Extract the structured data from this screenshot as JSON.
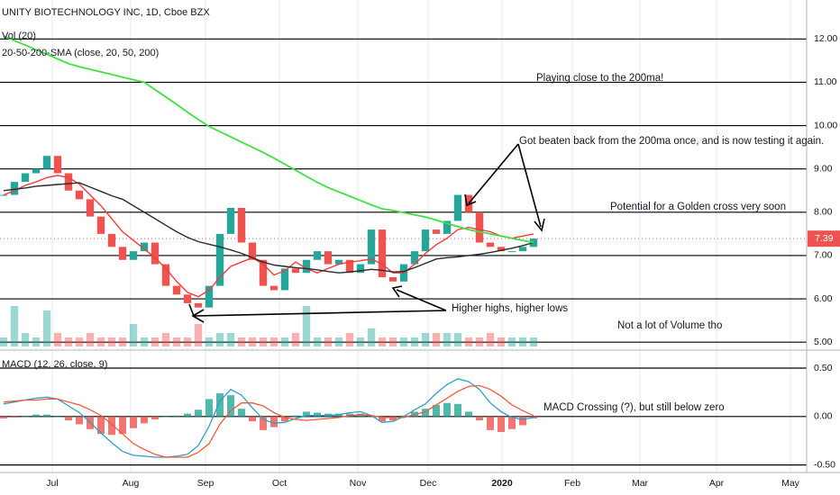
{
  "chart_data": [
    {
      "type": "candlestick",
      "title": "UNITY BIOTECHNOLOGY INC, 1D, Cboe BZX",
      "volume_label": "Vol (20)",
      "sma_label": "20-50-200-SMA (close, 20, 50, 200)",
      "x": [
        1,
        4,
        7,
        10,
        13,
        16,
        19,
        22,
        25,
        28,
        31,
        34,
        37,
        40,
        43,
        46,
        49,
        52,
        55,
        58,
        61,
        64,
        67,
        70,
        73,
        76,
        79,
        82,
        85,
        88,
        91,
        94,
        97,
        100,
        103,
        106,
        109,
        112,
        115,
        118,
        121,
        124,
        127,
        130,
        133,
        136,
        139,
        142,
        145,
        148
      ],
      "xlim": [
        0,
        223.75
      ],
      "xticks": [
        {
          "value": 14.5,
          "label": "Jul"
        },
        {
          "value": 36.25,
          "label": "Aug"
        },
        {
          "value": 57,
          "label": "Sep"
        },
        {
          "value": 77.5,
          "label": "Oct"
        },
        {
          "value": 99.25,
          "label": "Nov"
        },
        {
          "value": 118.75,
          "label": "Dec"
        },
        {
          "value": 139.25,
          "label": "2020"
        },
        {
          "value": 158.75,
          "label": "Feb"
        },
        {
          "value": 177.5,
          "label": "Mar"
        },
        {
          "value": 198.75,
          "label": "Apr"
        },
        {
          "value": 219.25,
          "label": "May"
        }
      ],
      "ylim": [
        4.9,
        12.9
      ],
      "yticks": [
        {
          "value": 5,
          "label": "5.00"
        },
        {
          "value": 6,
          "label": "6.00"
        },
        {
          "value": 7,
          "label": "7.00"
        },
        {
          "value": 8,
          "label": "8.00"
        },
        {
          "value": 9,
          "label": "9.00"
        },
        {
          "value": 10,
          "label": "10.00"
        },
        {
          "value": 11,
          "label": "11.00"
        },
        {
          "value": 12,
          "label": "12.00"
        }
      ],
      "series": [
        {
          "color": "#26a69a",
          "down_color": "#ef5350",
          "values": [
            8.4,
            8.7,
            8.9,
            9.0,
            9.3,
            8.9,
            8.5,
            8.3,
            7.9,
            7.5,
            7.2,
            6.9,
            7.1,
            7.3,
            6.8,
            6.3,
            6.1,
            5.9,
            5.8,
            6.3,
            7.5,
            8.1,
            7.3,
            6.9,
            6.3,
            6.2,
            6.7,
            6.6,
            6.9,
            7.1,
            6.8,
            6.9,
            6.6,
            6.8,
            7.6,
            6.5,
            6.4,
            6.8,
            7.1,
            7.6,
            7.5,
            7.8,
            8.4,
            8.0,
            7.3,
            7.2,
            7.1,
            7.1,
            7.2,
            7.39
          ]
        },
        {
          "color": "#f23b3b",
          "values": [
            8.4,
            8.5,
            8.62,
            8.7,
            8.8,
            8.85,
            8.8,
            8.65,
            8.4,
            8.15,
            7.85,
            7.55,
            7.35,
            7.15,
            6.95,
            6.7,
            6.4,
            6.15,
            6.05,
            6.2,
            6.5,
            6.75,
            6.85,
            6.95,
            6.8,
            6.55,
            6.65,
            6.85,
            6.7,
            6.6,
            6.7,
            6.8,
            6.85,
            6.88,
            6.92,
            6.8,
            6.6,
            6.6,
            6.8,
            7.05,
            7.25,
            7.4,
            7.6,
            7.65,
            7.6,
            7.55,
            7.45,
            7.4,
            7.45,
            7.5
          ]
        },
        {
          "color": "#2a2a2a",
          "values": [
            8.5,
            8.53,
            8.56,
            8.6,
            8.62,
            8.64,
            8.66,
            8.68,
            8.58,
            8.48,
            8.38,
            8.3,
            8.15,
            8.0,
            7.85,
            7.7,
            7.55,
            7.42,
            7.32,
            7.26,
            7.2,
            7.13,
            7.05,
            6.95,
            6.85,
            6.78,
            6.75,
            6.72,
            6.7,
            6.67,
            6.63,
            6.6,
            6.62,
            6.65,
            6.68,
            6.66,
            6.62,
            6.63,
            6.72,
            6.82,
            6.92,
            6.95,
            6.97,
            7.0,
            7.03,
            7.07,
            7.12,
            7.17,
            7.23,
            7.3
          ]
        },
        {
          "color": "#3fe03f",
          "values": [
            12.07,
            11.96,
            11.86,
            11.75,
            11.65,
            11.54,
            11.43,
            11.36,
            11.3,
            11.24,
            11.18,
            11.12,
            11.06,
            11.0,
            10.83,
            10.66,
            10.49,
            10.31,
            10.14,
            9.98,
            9.86,
            9.74,
            9.62,
            9.5,
            9.38,
            9.25,
            9.11,
            8.97,
            8.83,
            8.69,
            8.57,
            8.47,
            8.37,
            8.27,
            8.17,
            8.08,
            8.04,
            7.99,
            7.94,
            7.89,
            7.82,
            7.74,
            7.67,
            7.6,
            7.55,
            7.5,
            7.45,
            7.4,
            7.35,
            7.3
          ]
        }
      ],
      "volume": {
        "values": [
          2,
          9,
          3,
          2,
          8,
          3,
          2,
          2,
          3,
          2,
          2,
          2,
          5,
          2,
          2,
          3,
          2,
          2,
          5,
          2,
          3,
          3,
          2,
          2,
          2,
          2,
          2,
          3,
          9,
          2,
          2,
          2,
          3,
          2,
          4,
          2,
          2,
          2,
          2,
          3,
          3,
          3,
          3,
          2,
          2,
          3,
          2,
          2,
          2,
          2
        ]
      },
      "grid": true,
      "annotations": [
        "Playing close to the 200ma!",
        "Got beaten back from the 200ma once, and is now testing it again.",
        "Potential for a Golden cross very soon",
        "Higher highs, higher lows",
        "Not a lot of Volume tho"
      ]
    },
    {
      "type": "macd",
      "title": "MACD (12, 26, close, 9)",
      "ylim": [
        -0.55,
        0.63
      ],
      "yticks": [
        {
          "value": 0.5,
          "label": "0.50"
        },
        {
          "value": 0,
          "label": "0.00"
        },
        {
          "value": -0.5,
          "label": "-0.50"
        }
      ],
      "series": [
        {
          "color": "#2e9fc4",
          "values": [
            0.13,
            0.15,
            0.17,
            0.19,
            0.2,
            0.18,
            0.11,
            0.04,
            -0.06,
            -0.17,
            -0.27,
            -0.36,
            -0.4,
            -0.41,
            -0.42,
            -0.42,
            -0.41,
            -0.39,
            -0.3,
            -0.1,
            0.16,
            0.28,
            0.22,
            0.09,
            -0.03,
            -0.07,
            -0.06,
            -0.02,
            0.01,
            0.01,
            0.01,
            0.02,
            0.04,
            0.05,
            0.01,
            -0.06,
            -0.05,
            0.0,
            0.07,
            0.13,
            0.24,
            0.33,
            0.39,
            0.36,
            0.28,
            0.14,
            0.05,
            -0.01,
            -0.03,
            -0.01
          ]
        },
        {
          "color": "#f05a3c",
          "values": [
            0.15,
            0.16,
            0.17,
            0.17,
            0.18,
            0.18,
            0.15,
            0.12,
            0.07,
            0.01,
            -0.08,
            -0.18,
            -0.28,
            -0.34,
            -0.39,
            -0.42,
            -0.42,
            -0.42,
            -0.37,
            -0.28,
            -0.08,
            0.06,
            0.14,
            0.14,
            0.11,
            0.04,
            -0.01,
            -0.03,
            -0.04,
            -0.03,
            -0.02,
            -0.01,
            0.01,
            0.02,
            0.01,
            -0.01,
            -0.01,
            -0.01,
            0.02,
            0.05,
            0.12,
            0.19,
            0.26,
            0.31,
            0.32,
            0.28,
            0.21,
            0.12,
            0.06,
            0.01
          ]
        }
      ],
      "histogram": {
        "color": "#26a69a",
        "down_color": "#ef5350",
        "values": [
          -0.02,
          -0.01,
          0.0,
          0.02,
          0.02,
          0.0,
          -0.04,
          -0.08,
          -0.13,
          -0.18,
          -0.19,
          -0.18,
          -0.12,
          -0.07,
          -0.03,
          0.0,
          0.01,
          0.03,
          0.07,
          0.18,
          0.24,
          0.22,
          0.08,
          -0.05,
          -0.14,
          -0.11,
          -0.05,
          0.01,
          0.05,
          0.04,
          0.03,
          0.03,
          0.03,
          0.03,
          0.0,
          -0.05,
          -0.04,
          0.01,
          0.05,
          0.08,
          0.12,
          0.14,
          0.13,
          0.05,
          -0.04,
          -0.14,
          -0.16,
          -0.13,
          -0.09,
          -0.02
        ]
      },
      "annotations": [
        "MACD Crossing (?), but still below zero"
      ]
    }
  ]
}
